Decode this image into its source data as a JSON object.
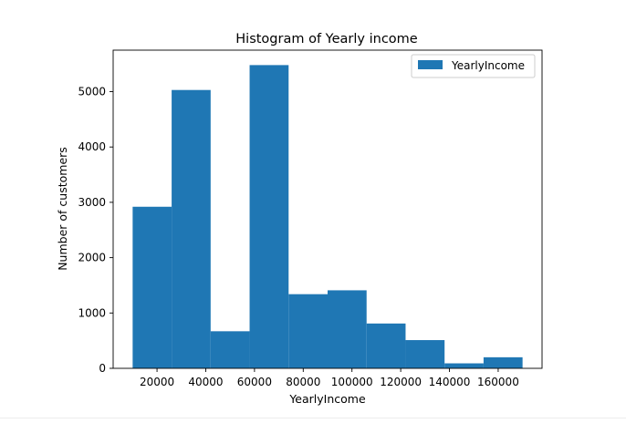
{
  "chart_data": {
    "type": "bar",
    "title": "Histogram of Yearly income",
    "xlabel": "YearlyIncome",
    "ylabel": "Number of customers",
    "xlim": [
      2000,
      178000
    ],
    "ylim": [
      0,
      5750
    ],
    "xticks": [
      20000,
      40000,
      60000,
      80000,
      100000,
      120000,
      140000,
      160000
    ],
    "yticks": [
      0,
      1000,
      2000,
      3000,
      4000,
      5000
    ],
    "bins": [
      {
        "x0": 10000,
        "x1": 26000,
        "value": 2920
      },
      {
        "x0": 26000,
        "x1": 42000,
        "value": 5030
      },
      {
        "x0": 42000,
        "x1": 58000,
        "value": 670
      },
      {
        "x0": 58000,
        "x1": 74000,
        "value": 5480
      },
      {
        "x0": 74000,
        "x1": 90000,
        "value": 1340
      },
      {
        "x0": 90000,
        "x1": 106000,
        "value": 1410
      },
      {
        "x0": 106000,
        "x1": 122000,
        "value": 810
      },
      {
        "x0": 122000,
        "x1": 138000,
        "value": 510
      },
      {
        "x0": 138000,
        "x1": 154000,
        "value": 90
      },
      {
        "x0": 154000,
        "x1": 170000,
        "value": 200
      }
    ],
    "series": [
      {
        "name": "YearlyIncome",
        "color": "#1f77b4"
      }
    ],
    "legend_position": "top-right",
    "grid": false
  }
}
